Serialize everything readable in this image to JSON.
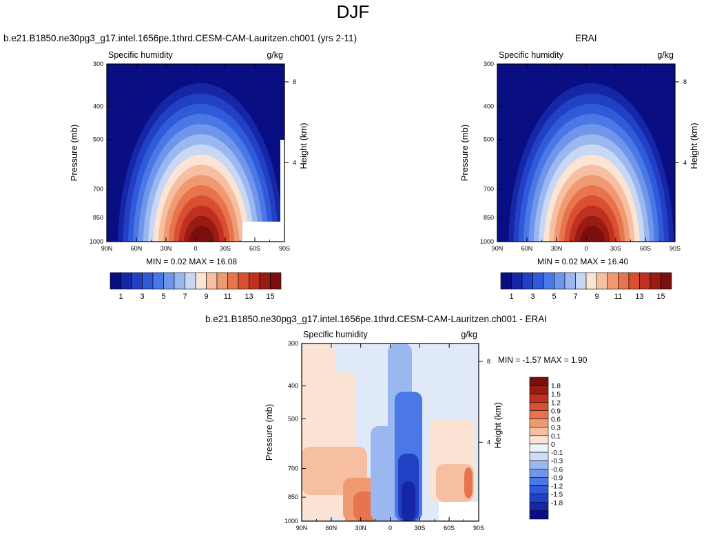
{
  "page": {
    "title": "DJF"
  },
  "panels": [
    {
      "title": "b.e21.B1850.ne30pg3_g17.intel.1656pe.1thrd.CESM-CAM-Lauritzen.ch001 (yrs 2-11)",
      "left_label": "Specific humidity",
      "right_label": "g/kg",
      "ylabel": "Pressure (mb)",
      "ylabel_right": "Height (km)",
      "stats": "MIN =  0.02  MAX =  16.08"
    },
    {
      "title": "ERAI",
      "left_label": "Specific humidity",
      "right_label": "g/kg",
      "ylabel": "Pressure (mb)",
      "ylabel_right": "Height (km)",
      "stats": "MIN =  0.02  MAX =  16.40"
    },
    {
      "title": "b.e21.B1850.ne30pg3_g17.intel.1656pe.1thrd.CESM-CAM-Lauritzen.ch001 - ERAI",
      "left_label": "Specific humidity",
      "right_label": "g/kg",
      "ylabel": "Pressure (mb)",
      "ylabel_right": "Height (km)",
      "stats": "MIN =  -1.57  MAX =   1.90"
    }
  ],
  "colors": {
    "abs_scale": [
      "#0a0e83",
      "#1526a6",
      "#2140c4",
      "#2f5bd9",
      "#4a78e6",
      "#7096ec",
      "#9bb7f0",
      "#c8d8f4",
      "#fbe4d3",
      "#f6bfa1",
      "#f09a73",
      "#e8744e",
      "#d84f31",
      "#bf3020",
      "#9a1a14",
      "#7a0f0f"
    ],
    "diff_scale": [
      "#0a0e83",
      "#1526a6",
      "#2140c4",
      "#2f5bd9",
      "#4a78e6",
      "#7096ec",
      "#9bb7f0",
      "#cddcf4",
      "#eef3fb",
      "#fbe4d3",
      "#f6bfa1",
      "#f09a73",
      "#e8744e",
      "#d84f31",
      "#bf3020",
      "#9a1a14",
      "#7a0f0f"
    ]
  },
  "chart_data": [
    {
      "type": "heatmap",
      "title": "b.e21.B1850.ne30pg3_g17.intel.1656pe.1thrd.CESM-CAM-Lauritzen.ch001 (yrs 2-11)",
      "variable": "Specific humidity",
      "units": "g/kg",
      "ylabel": "Pressure (mb)",
      "ylabel_right": "Height (km)",
      "x_ticks": [
        "90N",
        "60N",
        "30N",
        "0",
        "30S",
        "60S",
        "90S"
      ],
      "y_ticks": [
        300,
        400,
        500,
        700,
        850,
        1000
      ],
      "y_right_ticks": [
        8,
        4
      ],
      "y_scale": "log",
      "ylim": [
        1000,
        300
      ],
      "min": 0.02,
      "max": 16.08,
      "colorbar_labels": [
        1,
        3,
        5,
        7,
        9,
        11,
        13,
        15
      ],
      "peak_lat": -5,
      "peak_value": 16.08
    },
    {
      "type": "heatmap",
      "title": "ERAI",
      "variable": "Specific humidity",
      "units": "g/kg",
      "ylabel": "Pressure (mb)",
      "ylabel_right": "Height (km)",
      "x_ticks": [
        "90N",
        "60N",
        "30N",
        "0",
        "30S",
        "60S",
        "90S"
      ],
      "y_ticks": [
        300,
        400,
        500,
        700,
        850,
        1000
      ],
      "y_right_ticks": [
        8,
        4
      ],
      "y_scale": "log",
      "ylim": [
        1000,
        300
      ],
      "min": 0.02,
      "max": 16.4,
      "colorbar_labels": [
        1,
        3,
        5,
        7,
        9,
        11,
        13,
        15
      ],
      "peak_lat": -5,
      "peak_value": 16.4
    },
    {
      "type": "heatmap",
      "title": "b.e21.B1850.ne30pg3_g17.intel.1656pe.1thrd.CESM-CAM-Lauritzen.ch001 - ERAI",
      "variable": "Specific humidity",
      "units": "g/kg",
      "ylabel": "Pressure (mb)",
      "ylabel_right": "Height (km)",
      "x_ticks": [
        "90N",
        "60N",
        "30N",
        "0",
        "30S",
        "60S",
        "90S"
      ],
      "y_ticks": [
        300,
        400,
        500,
        700,
        850,
        1000
      ],
      "y_right_ticks": [
        8,
        4
      ],
      "y_scale": "log",
      "ylim": [
        1000,
        300
      ],
      "min": -1.57,
      "max": 1.9,
      "colorbar_labels": [
        "1.8",
        "1.5",
        "1.2",
        "0.9",
        "0.6",
        "0.3",
        "0.1",
        "0",
        "-0.1",
        "-0.3",
        "-0.6",
        "-0.9",
        "-1.2",
        "-1.5",
        "-1.8"
      ]
    }
  ]
}
